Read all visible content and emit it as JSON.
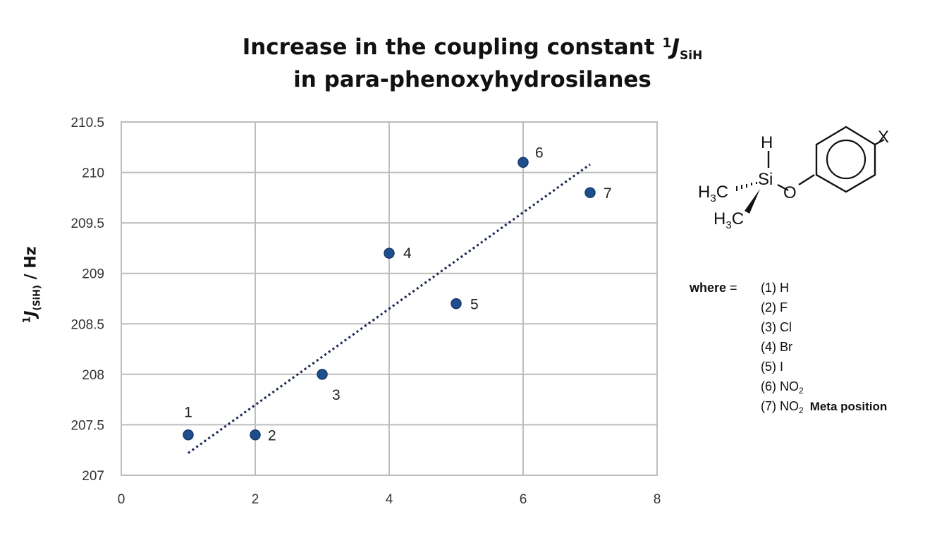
{
  "title": {
    "line1_prefix": "Increase in the coupling constant ",
    "sup": "1",
    "j": "J",
    "sub": "SiH",
    "line2": "in para-phenoxyhydrosilanes"
  },
  "y_axis_label": {
    "sup": "1",
    "j": "J",
    "sub": "(SiH)",
    "suffix": " / Hz"
  },
  "chart_data": {
    "type": "scatter",
    "title": "Increase in the coupling constant 1JSiH in para-phenoxyhydrosilanes",
    "xlabel": "",
    "ylabel": "1J(SiH) / Hz",
    "xlim": [
      0,
      8
    ],
    "ylim": [
      207,
      210.5
    ],
    "x_ticks": [
      0,
      2,
      4,
      6,
      8
    ],
    "y_ticks": [
      207,
      207.5,
      208,
      208.5,
      209,
      209.5,
      210,
      210.5
    ],
    "grid": true,
    "marker_color": "#1f4e8c",
    "trendline_color": "#1b2a55",
    "points": [
      {
        "label": "1",
        "x": 1,
        "y": 207.4
      },
      {
        "label": "2",
        "x": 2,
        "y": 207.4
      },
      {
        "label": "3",
        "x": 3,
        "y": 208.0
      },
      {
        "label": "4",
        "x": 4,
        "y": 209.2
      },
      {
        "label": "5",
        "x": 5,
        "y": 208.7
      },
      {
        "label": "6",
        "x": 6,
        "y": 210.1
      },
      {
        "label": "7",
        "x": 7,
        "y": 209.8
      }
    ],
    "trendline": {
      "type": "linear",
      "x": [
        1,
        7
      ],
      "y": [
        207.22,
        210.08
      ]
    }
  },
  "legend": {
    "where_label": "where",
    "equals": "=",
    "items": [
      {
        "num": "(1)",
        "main": "H",
        "sub": "",
        "extra": ""
      },
      {
        "num": "(2)",
        "main": "F",
        "sub": "",
        "extra": ""
      },
      {
        "num": "(3)",
        "main": "Cl",
        "sub": "",
        "extra": ""
      },
      {
        "num": "(4)",
        "main": "Br",
        "sub": "",
        "extra": ""
      },
      {
        "num": "(5)",
        "main": "I",
        "sub": "",
        "extra": ""
      },
      {
        "num": "(6)",
        "main": "NO",
        "sub": "2",
        "extra": ""
      },
      {
        "num": "(7)",
        "main": "NO",
        "sub": "2",
        "extra": "Meta position"
      }
    ]
  },
  "molecule": {
    "h_top": "H",
    "si": "Si",
    "o": "O",
    "x": "X",
    "methyl1_main": "H",
    "methyl1_sub": "3",
    "methyl1_c": "C",
    "methyl2_main": "H",
    "methyl2_sub": "3",
    "methyl2_c": "C"
  }
}
